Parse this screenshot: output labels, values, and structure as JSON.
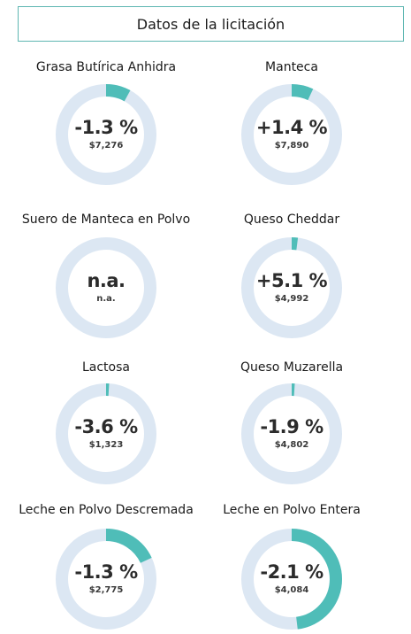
{
  "header": {
    "title": "Datos de la licitación"
  },
  "colors": {
    "track": "#dce7f3",
    "fill": "#4fbdb8"
  },
  "chart_data": {
    "type": "gauge",
    "items": [
      {
        "name": "Grasa Butírica Anhidra",
        "change": "-1.3 %",
        "price": "$7,276",
        "fill": 0.08
      },
      {
        "name": "Manteca",
        "change": "+1.4 %",
        "price": "$7,890",
        "fill": 0.07
      },
      {
        "name": "Suero de Manteca en Polvo",
        "change": "n.a.",
        "price": "n.a.",
        "fill": 0
      },
      {
        "name": "Queso Cheddar",
        "change": "+5.1 %",
        "price": "$4,992",
        "fill": 0.02
      },
      {
        "name": "Lactosa",
        "change": "-3.6 %",
        "price": "$1,323",
        "fill": 0.01
      },
      {
        "name": "Queso Muzarella",
        "change": "-1.9 %",
        "price": "$4,802",
        "fill": 0.01
      },
      {
        "name": "Leche en Polvo Descremada",
        "change": "-1.3 %",
        "price": "$2,775",
        "fill": 0.18
      },
      {
        "name": "Leche en Polvo Entera",
        "change": "-2.1 %",
        "price": "$4,084",
        "fill": 0.48
      }
    ]
  }
}
